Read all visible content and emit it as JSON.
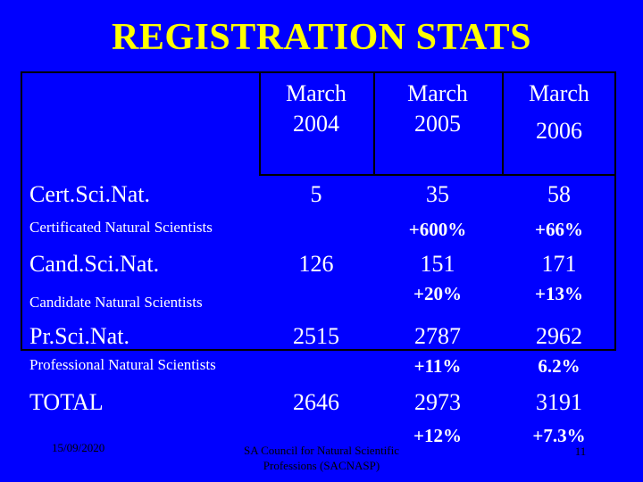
{
  "title": "REGISTRATION STATS",
  "headers": [
    {
      "line1": "March",
      "line2": "2004"
    },
    {
      "line1": "March",
      "line2": "2005"
    },
    {
      "line1": "March",
      "line2": "2006"
    }
  ],
  "rows": [
    {
      "label": "Cert.Sci.Nat.",
      "sub": "Certificated Natural Scientists",
      "values": [
        "5",
        "35",
        "58"
      ],
      "pct": [
        "+600%",
        "+66%"
      ]
    },
    {
      "label": "Cand.Sci.Nat.",
      "sub": "Candidate Natural Scientists",
      "values": [
        "126",
        "151",
        "171"
      ],
      "pct": [
        "+20%",
        "+13%"
      ]
    },
    {
      "label": "Pr.Sci.Nat.",
      "sub": "Professional Natural Scientists",
      "values": [
        "2515",
        "2787",
        "2962"
      ],
      "pct": [
        "+11%",
        "6.2%"
      ]
    },
    {
      "label": "TOTAL",
      "sub": "",
      "values": [
        "2646",
        "2973",
        "3191"
      ],
      "pct": [
        "+12%",
        "+7.3%"
      ]
    }
  ],
  "footer": {
    "date": "15/09/2020",
    "org_line1": "SA Council for Natural Scientific",
    "org_line2": "Professions (SACNASP)",
    "page": "11"
  }
}
